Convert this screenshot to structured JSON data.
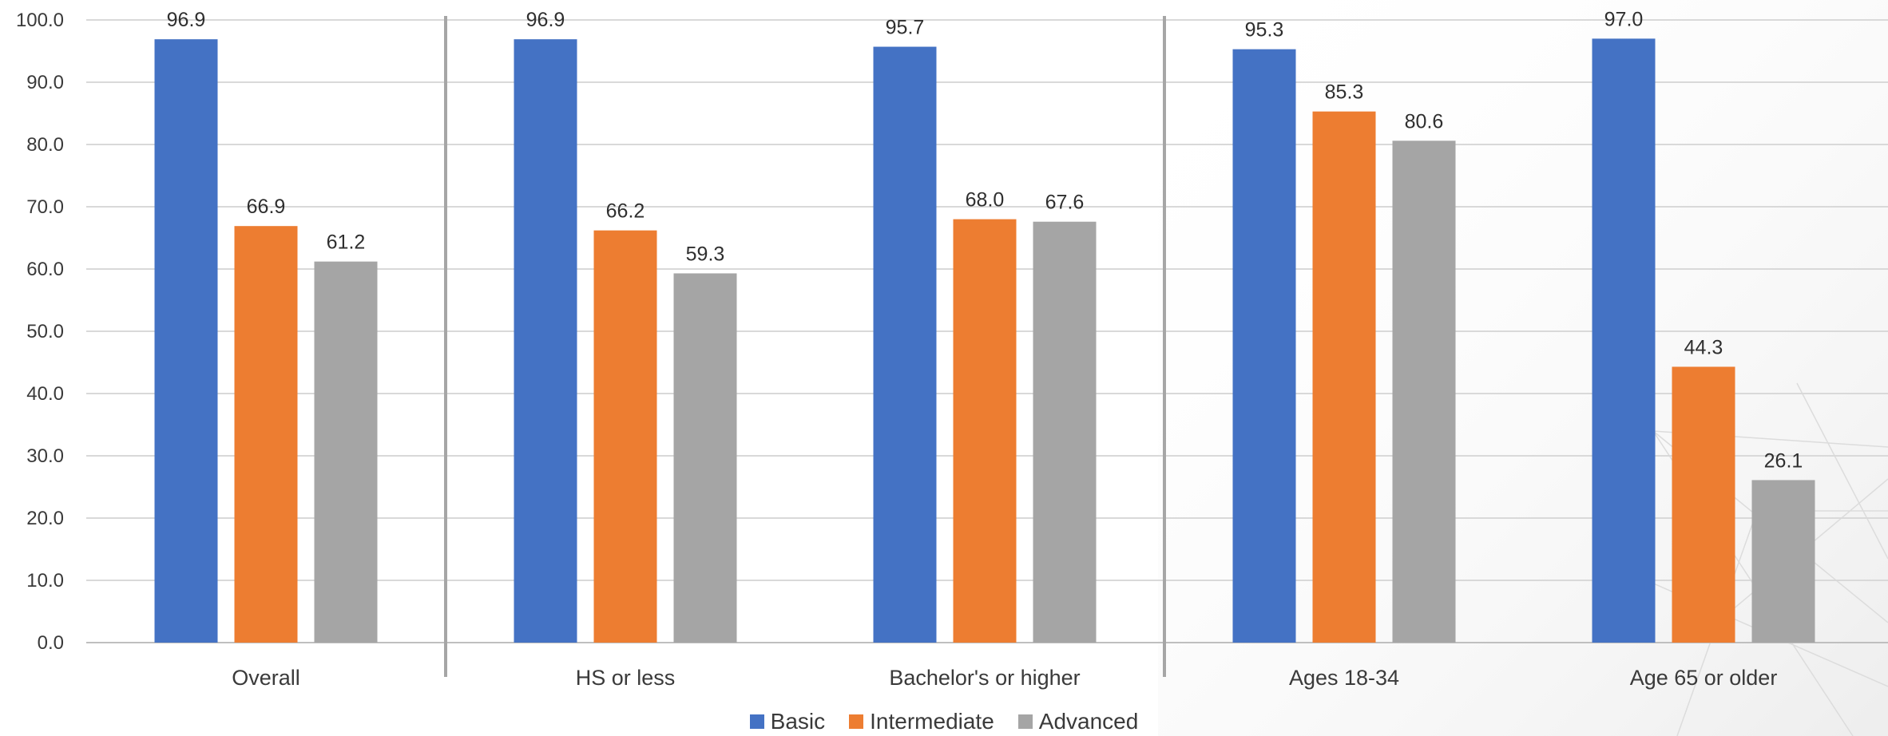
{
  "chart_data": {
    "type": "bar",
    "categories": [
      "Overall",
      "HS or less",
      "Bachelor's or higher",
      "Ages 18-34",
      "Age 65 or older"
    ],
    "series": [
      {
        "name": "Basic",
        "color": "#4472C4",
        "values": [
          96.9,
          96.9,
          95.7,
          95.3,
          97.0
        ]
      },
      {
        "name": "Intermediate",
        "color": "#ED7D31",
        "values": [
          66.9,
          66.2,
          68.0,
          85.3,
          44.3
        ]
      },
      {
        "name": "Advanced",
        "color": "#A5A5A5",
        "values": [
          61.2,
          59.3,
          67.6,
          80.6,
          26.1
        ]
      }
    ],
    "ylim": [
      0,
      100
    ],
    "yticks": [
      "0.0",
      "10.0",
      "20.0",
      "30.0",
      "40.0",
      "50.0",
      "60.0",
      "70.0",
      "80.0",
      "90.0",
      "100.0"
    ],
    "title": "",
    "xlabel": "",
    "ylabel": "",
    "grid": true,
    "legend_position": "bottom",
    "group_separators_after": [
      "Overall",
      "Bachelor's or higher"
    ]
  }
}
